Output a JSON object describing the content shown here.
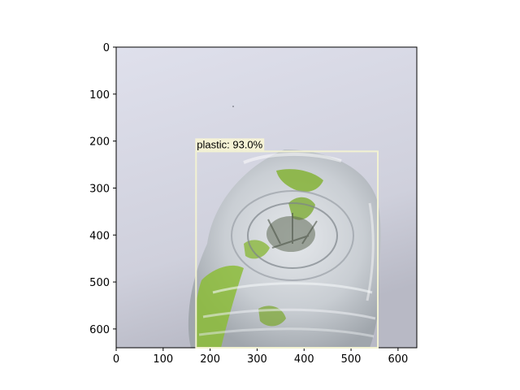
{
  "figure": {
    "image_width": 640,
    "image_height": 640,
    "x_ticks": [
      "0",
      "100",
      "200",
      "300",
      "400",
      "500",
      "600"
    ],
    "y_ticks": [
      "0",
      "100",
      "200",
      "300",
      "400",
      "500",
      "600"
    ]
  },
  "detection": {
    "class": "plastic",
    "confidence": "93.0%",
    "label": "plastic: 93.0%",
    "box": {
      "x1": 170,
      "y1": 222,
      "x2": 557,
      "y2": 640
    },
    "box_color": "#f2f2d2",
    "label_bg": "#f5f2d5"
  },
  "colors": {
    "background_top": "#dcdde9",
    "background_bottom": "#b9bac6",
    "bottle_green": "#7cab2e",
    "bottle_clear": "#d9dde1"
  }
}
